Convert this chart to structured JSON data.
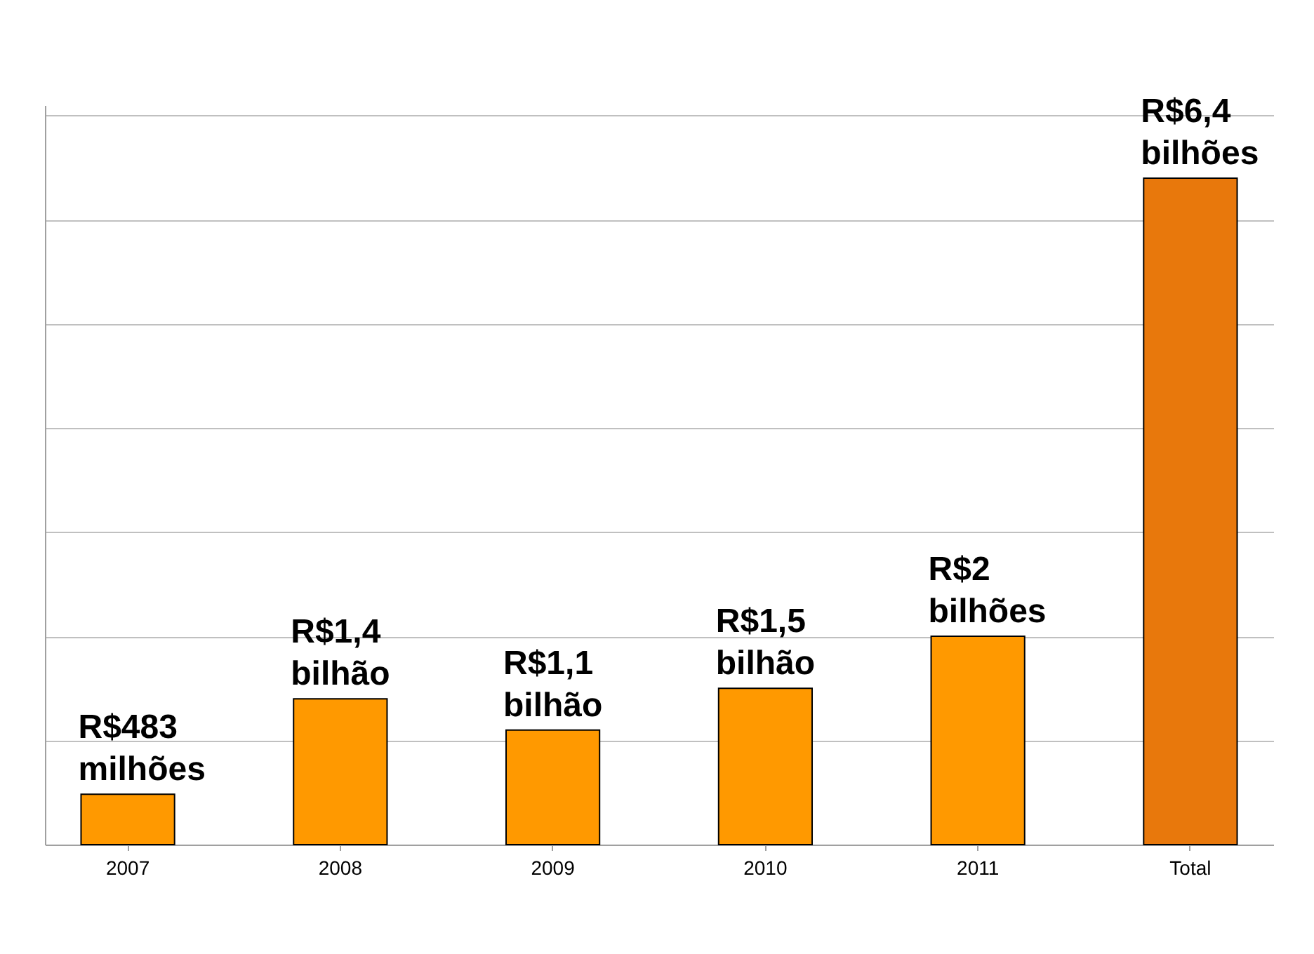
{
  "chart_data": {
    "type": "bar",
    "categories": [
      "2007",
      "2008",
      "2009",
      "2010",
      "2011",
      "Total"
    ],
    "values": [
      0.483,
      1.4,
      1.1,
      1.5,
      2,
      6.4
    ],
    "colors": [
      "#ff9900",
      "#ff9900",
      "#ff9900",
      "#ff9900",
      "#ff9900",
      "#e8780c"
    ],
    "value_labels": [
      "R$483\nmilhões",
      "R$1,4\nbilhão",
      "R$1,1\nbilhão",
      "R$1,5\nbilhão",
      "R$2\nbilhões",
      "R$6,4\nbilhões"
    ],
    "ylim": [
      0,
      7.1
    ],
    "yticks": [
      {
        "value": 0,
        "label": null
      },
      {
        "value": 1,
        "label": null
      },
      {
        "value": 2,
        "label": null
      },
      {
        "value": 3,
        "label": null
      },
      {
        "value": 4,
        "label": null
      },
      {
        "value": 5,
        "label": null
      },
      {
        "value": 6,
        "label": null
      },
      {
        "value": 7,
        "label": null
      }
    ],
    "tick_labels": "x",
    "grid": "y"
  }
}
